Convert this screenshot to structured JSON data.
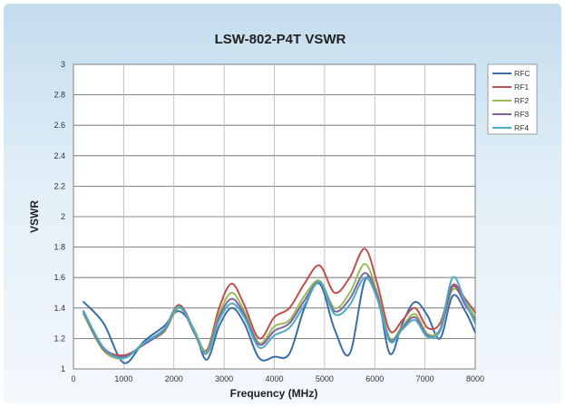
{
  "chart_data": {
    "type": "line",
    "title": "LSW-802-P4T VSWR",
    "xlabel": "Frequency (MHz)",
    "ylabel": "VSWR",
    "xlim": [
      0,
      8000
    ],
    "ylim": [
      1,
      3
    ],
    "x_ticks": [
      "0",
      "1000",
      "2000",
      "3000",
      "4000",
      "5000",
      "6000",
      "7000",
      "8000"
    ],
    "y_ticks": [
      "1",
      "1.2",
      "1.4",
      "1.6",
      "1.8",
      "2",
      "2.2",
      "2.4",
      "2.6",
      "2.8",
      "3"
    ],
    "grid": true,
    "legend_position": "top-right",
    "x": [
      200,
      600,
      1000,
      1400,
      1800,
      2100,
      2400,
      2650,
      2900,
      3150,
      3400,
      3700,
      4000,
      4300,
      4600,
      4900,
      5200,
      5500,
      5800,
      6050,
      6300,
      6550,
      6800,
      7050,
      7300,
      7550,
      7800,
      8000
    ],
    "series": [
      {
        "name": "RFC",
        "color": "#3b6ea5",
        "values": [
          1.44,
          1.3,
          1.04,
          1.18,
          1.28,
          1.38,
          1.26,
          1.06,
          1.28,
          1.4,
          1.3,
          1.07,
          1.08,
          1.1,
          1.4,
          1.56,
          1.26,
          1.1,
          1.58,
          1.5,
          1.1,
          1.3,
          1.44,
          1.35,
          1.2,
          1.48,
          1.38,
          1.24
        ]
      },
      {
        "name": "RF1",
        "color": "#c0504d",
        "values": [
          1.38,
          1.14,
          1.09,
          1.16,
          1.26,
          1.42,
          1.26,
          1.12,
          1.4,
          1.56,
          1.42,
          1.2,
          1.34,
          1.4,
          1.56,
          1.68,
          1.5,
          1.6,
          1.79,
          1.56,
          1.25,
          1.32,
          1.4,
          1.27,
          1.3,
          1.55,
          1.46,
          1.37
        ]
      },
      {
        "name": "RF2",
        "color": "#9bbb59",
        "values": [
          1.36,
          1.12,
          1.07,
          1.17,
          1.24,
          1.4,
          1.26,
          1.11,
          1.36,
          1.5,
          1.38,
          1.17,
          1.28,
          1.32,
          1.48,
          1.58,
          1.4,
          1.5,
          1.69,
          1.5,
          1.2,
          1.28,
          1.36,
          1.23,
          1.26,
          1.52,
          1.44,
          1.34
        ]
      },
      {
        "name": "RF3",
        "color": "#8064a2",
        "values": [
          1.37,
          1.13,
          1.08,
          1.16,
          1.25,
          1.41,
          1.24,
          1.1,
          1.34,
          1.46,
          1.36,
          1.16,
          1.25,
          1.3,
          1.45,
          1.57,
          1.38,
          1.46,
          1.63,
          1.48,
          1.19,
          1.27,
          1.34,
          1.22,
          1.25,
          1.54,
          1.42,
          1.32
        ]
      },
      {
        "name": "RF4",
        "color": "#4bacc6",
        "values": [
          1.38,
          1.14,
          1.07,
          1.17,
          1.26,
          1.41,
          1.25,
          1.1,
          1.32,
          1.43,
          1.34,
          1.14,
          1.22,
          1.27,
          1.42,
          1.57,
          1.36,
          1.42,
          1.6,
          1.46,
          1.18,
          1.26,
          1.32,
          1.21,
          1.26,
          1.6,
          1.44,
          1.3
        ]
      }
    ]
  }
}
